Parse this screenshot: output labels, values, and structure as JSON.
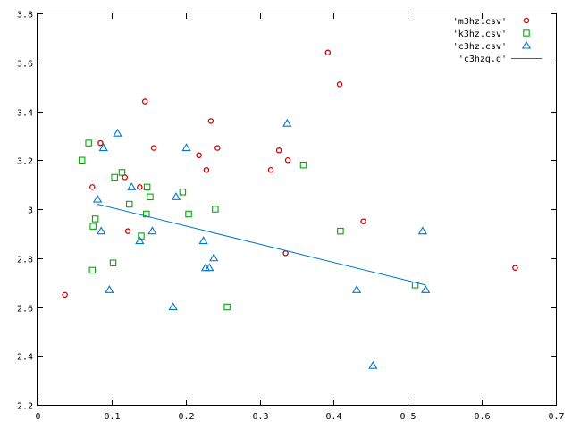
{
  "chart_data": {
    "type": "scatter",
    "title": "",
    "xlabel": "",
    "ylabel": "",
    "xlim": [
      0,
      0.7
    ],
    "ylim": [
      2.2,
      3.8
    ],
    "xticks": [
      "0",
      "0.1",
      "0.2",
      "0.3",
      "0.4",
      "0.5",
      "0.6",
      "0.7"
    ],
    "yticks": [
      "2.2",
      "2.4",
      "2.6",
      "2.8",
      "3",
      "3.2",
      "3.4",
      "3.6",
      "3.8"
    ],
    "grid": false,
    "legend_position": "top-right",
    "series": [
      {
        "name": "'m3hz.csv'",
        "marker": "circle",
        "color": "#cc0000",
        "points": [
          [
            0.037,
            2.65
          ],
          [
            0.074,
            3.09
          ],
          [
            0.085,
            3.27
          ],
          [
            0.118,
            3.13
          ],
          [
            0.122,
            2.91
          ],
          [
            0.138,
            3.09
          ],
          [
            0.145,
            3.44
          ],
          [
            0.157,
            3.25
          ],
          [
            0.218,
            3.22
          ],
          [
            0.228,
            3.16
          ],
          [
            0.234,
            3.36
          ],
          [
            0.243,
            3.25
          ],
          [
            0.315,
            3.16
          ],
          [
            0.326,
            3.24
          ],
          [
            0.335,
            2.82
          ],
          [
            0.338,
            3.2
          ],
          [
            0.392,
            3.64
          ],
          [
            0.408,
            3.51
          ],
          [
            0.44,
            2.95
          ],
          [
            0.645,
            2.76
          ]
        ]
      },
      {
        "name": "'k3hz.csv'",
        "marker": "square",
        "color": "#00aa00",
        "points": [
          [
            0.06,
            3.2
          ],
          [
            0.069,
            3.27
          ],
          [
            0.074,
            2.75
          ],
          [
            0.075,
            2.93
          ],
          [
            0.078,
            2.96
          ],
          [
            0.102,
            2.78
          ],
          [
            0.104,
            3.13
          ],
          [
            0.114,
            3.15
          ],
          [
            0.124,
            3.02
          ],
          [
            0.14,
            2.89
          ],
          [
            0.147,
            2.98
          ],
          [
            0.148,
            3.09
          ],
          [
            0.152,
            3.05
          ],
          [
            0.196,
            3.07
          ],
          [
            0.204,
            2.98
          ],
          [
            0.24,
            3.0
          ],
          [
            0.256,
            2.6
          ],
          [
            0.359,
            3.18
          ],
          [
            0.409,
            2.91
          ],
          [
            0.51,
            2.69
          ]
        ]
      },
      {
        "name": "'c3hz.csv'",
        "marker": "triangle",
        "color": "#0077cc",
        "points": [
          [
            0.081,
            3.04
          ],
          [
            0.086,
            2.91
          ],
          [
            0.089,
            3.25
          ],
          [
            0.097,
            2.67
          ],
          [
            0.108,
            3.31
          ],
          [
            0.127,
            3.09
          ],
          [
            0.138,
            2.87
          ],
          [
            0.155,
            2.91
          ],
          [
            0.183,
            2.6
          ],
          [
            0.187,
            3.05
          ],
          [
            0.201,
            3.25
          ],
          [
            0.224,
            2.87
          ],
          [
            0.227,
            2.76
          ],
          [
            0.232,
            2.76
          ],
          [
            0.238,
            2.8
          ],
          [
            0.337,
            3.35
          ],
          [
            0.431,
            2.67
          ],
          [
            0.453,
            2.36
          ],
          [
            0.52,
            2.91
          ],
          [
            0.524,
            2.67
          ]
        ]
      },
      {
        "name": "'c3hzg.d'",
        "marker": "line",
        "color": "#0077cc",
        "points": [
          [
            0.081,
            3.02
          ],
          [
            0.524,
            2.69
          ]
        ]
      }
    ]
  }
}
